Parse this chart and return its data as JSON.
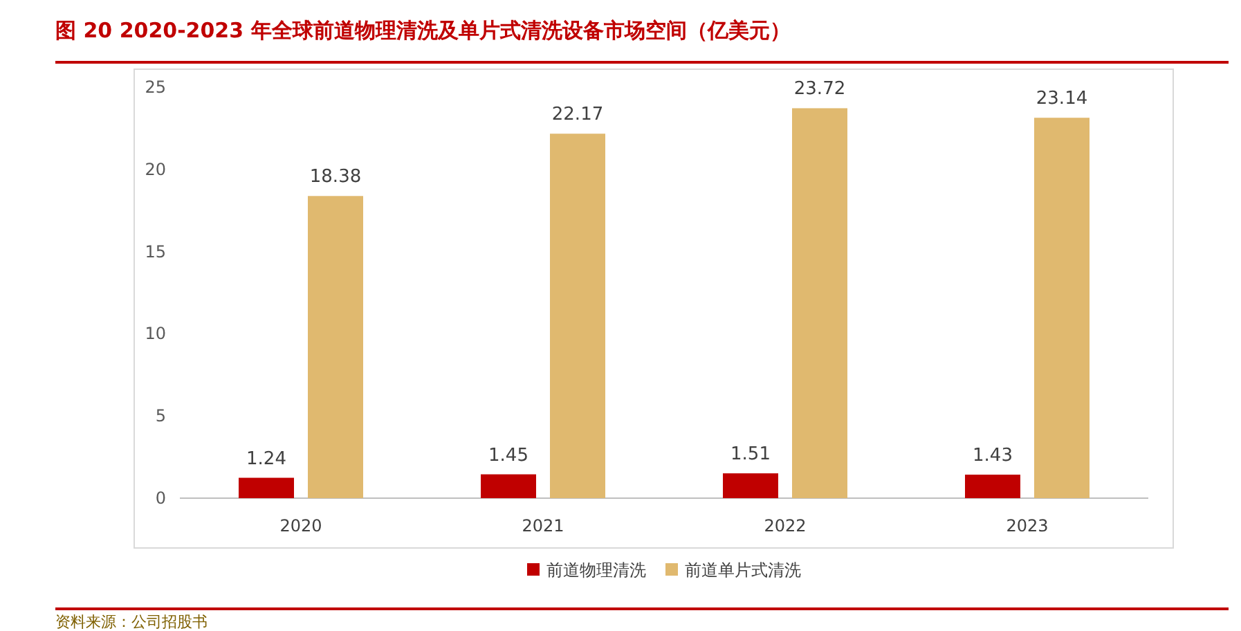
{
  "chart_data": {
    "type": "bar",
    "title": "图 20   2020-2023 年全球前道物理清洗及单片式清洗设备市场空间（亿美元）",
    "categories": [
      "2020",
      "2021",
      "2022",
      "2023"
    ],
    "series": [
      {
        "name": "前道物理清洗",
        "color": "#c00000",
        "values": [
          1.24,
          1.45,
          1.51,
          1.43
        ]
      },
      {
        "name": "前道单片式清洗",
        "color": "#e0b96f",
        "values": [
          18.38,
          22.17,
          23.72,
          23.14
        ]
      }
    ],
    "ylim": [
      0,
      25
    ],
    "yticks": [
      0,
      5,
      10,
      15,
      20,
      25
    ],
    "data_labels": true,
    "legend": "bottom",
    "annotations": [
      "资料来源：公司招股书"
    ]
  }
}
